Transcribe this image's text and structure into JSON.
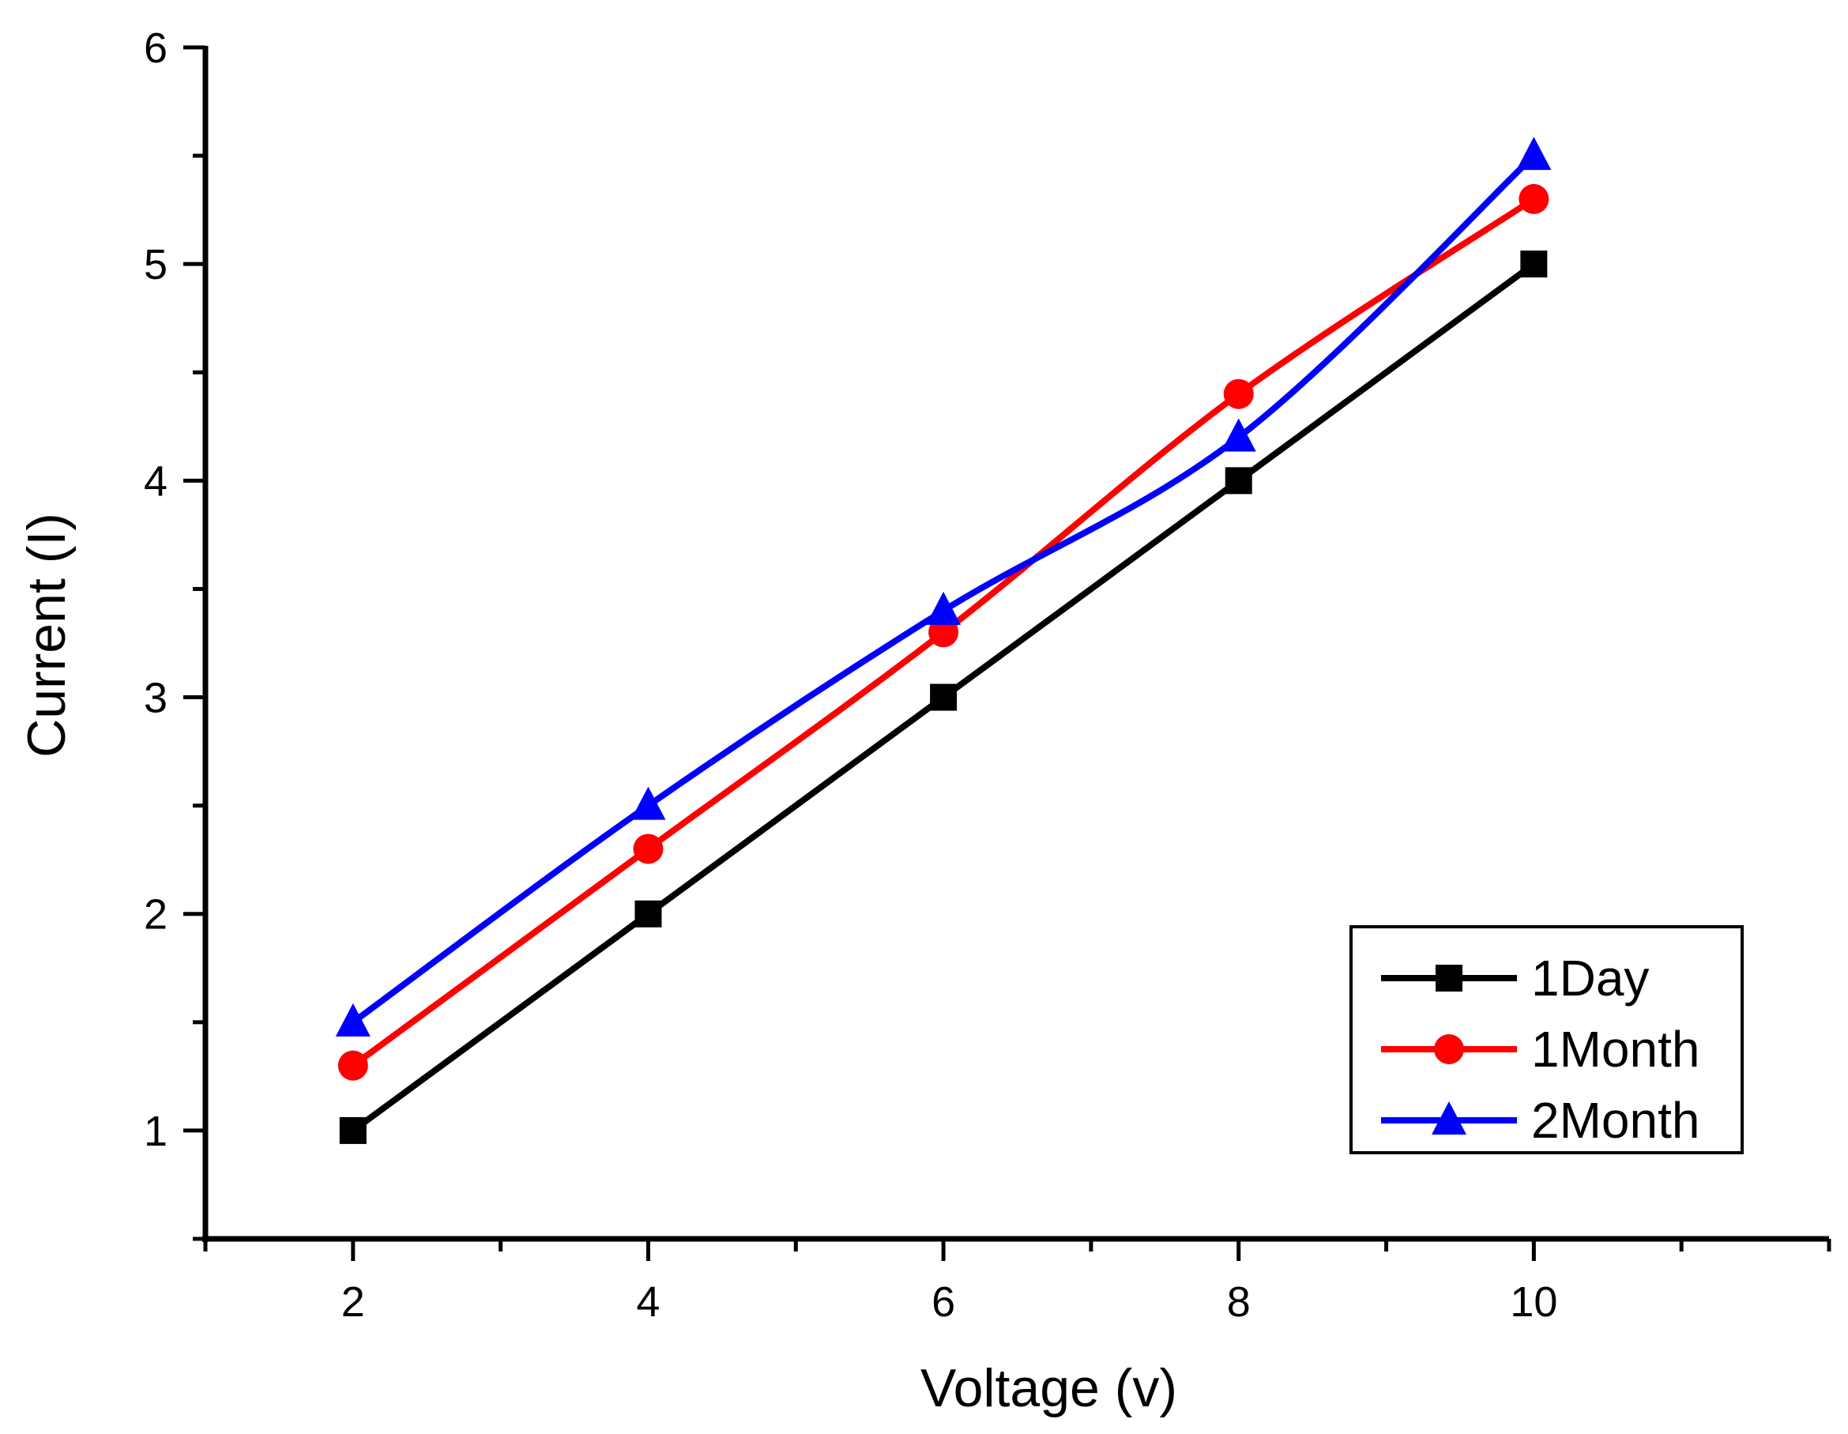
{
  "chart_data": {
    "type": "line",
    "title": "",
    "xlabel": "Voltage (v)",
    "ylabel": "Current (I)",
    "xlim": [
      1,
      12
    ],
    "ylim": [
      0.5,
      6
    ],
    "xticks": [
      2,
      4,
      6,
      8,
      10
    ],
    "xticks_minor": [
      1,
      3,
      5,
      7,
      9,
      11,
      12
    ],
    "yticks": [
      1,
      2,
      3,
      4,
      5,
      6
    ],
    "yticks_minor": [
      0.5,
      1.5,
      2.5,
      3.5,
      4.5,
      5.5
    ],
    "x": [
      2,
      4,
      6,
      8,
      10
    ],
    "series": [
      {
        "name": "1Day",
        "values": [
          1.0,
          2.0,
          3.0,
          4.0,
          5.0
        ],
        "color": "#000000",
        "marker": "square",
        "smooth": false
      },
      {
        "name": "1Month",
        "values": [
          1.3,
          2.3,
          3.3,
          4.4,
          5.3
        ],
        "color": "#ff0000",
        "marker": "circle",
        "smooth": true
      },
      {
        "name": "2Month",
        "values": [
          1.5,
          2.5,
          3.4,
          4.2,
          5.5
        ],
        "color": "#0000ff",
        "marker": "triangle",
        "smooth": true
      }
    ],
    "legend_position": "bottom-right",
    "grid": false
  }
}
